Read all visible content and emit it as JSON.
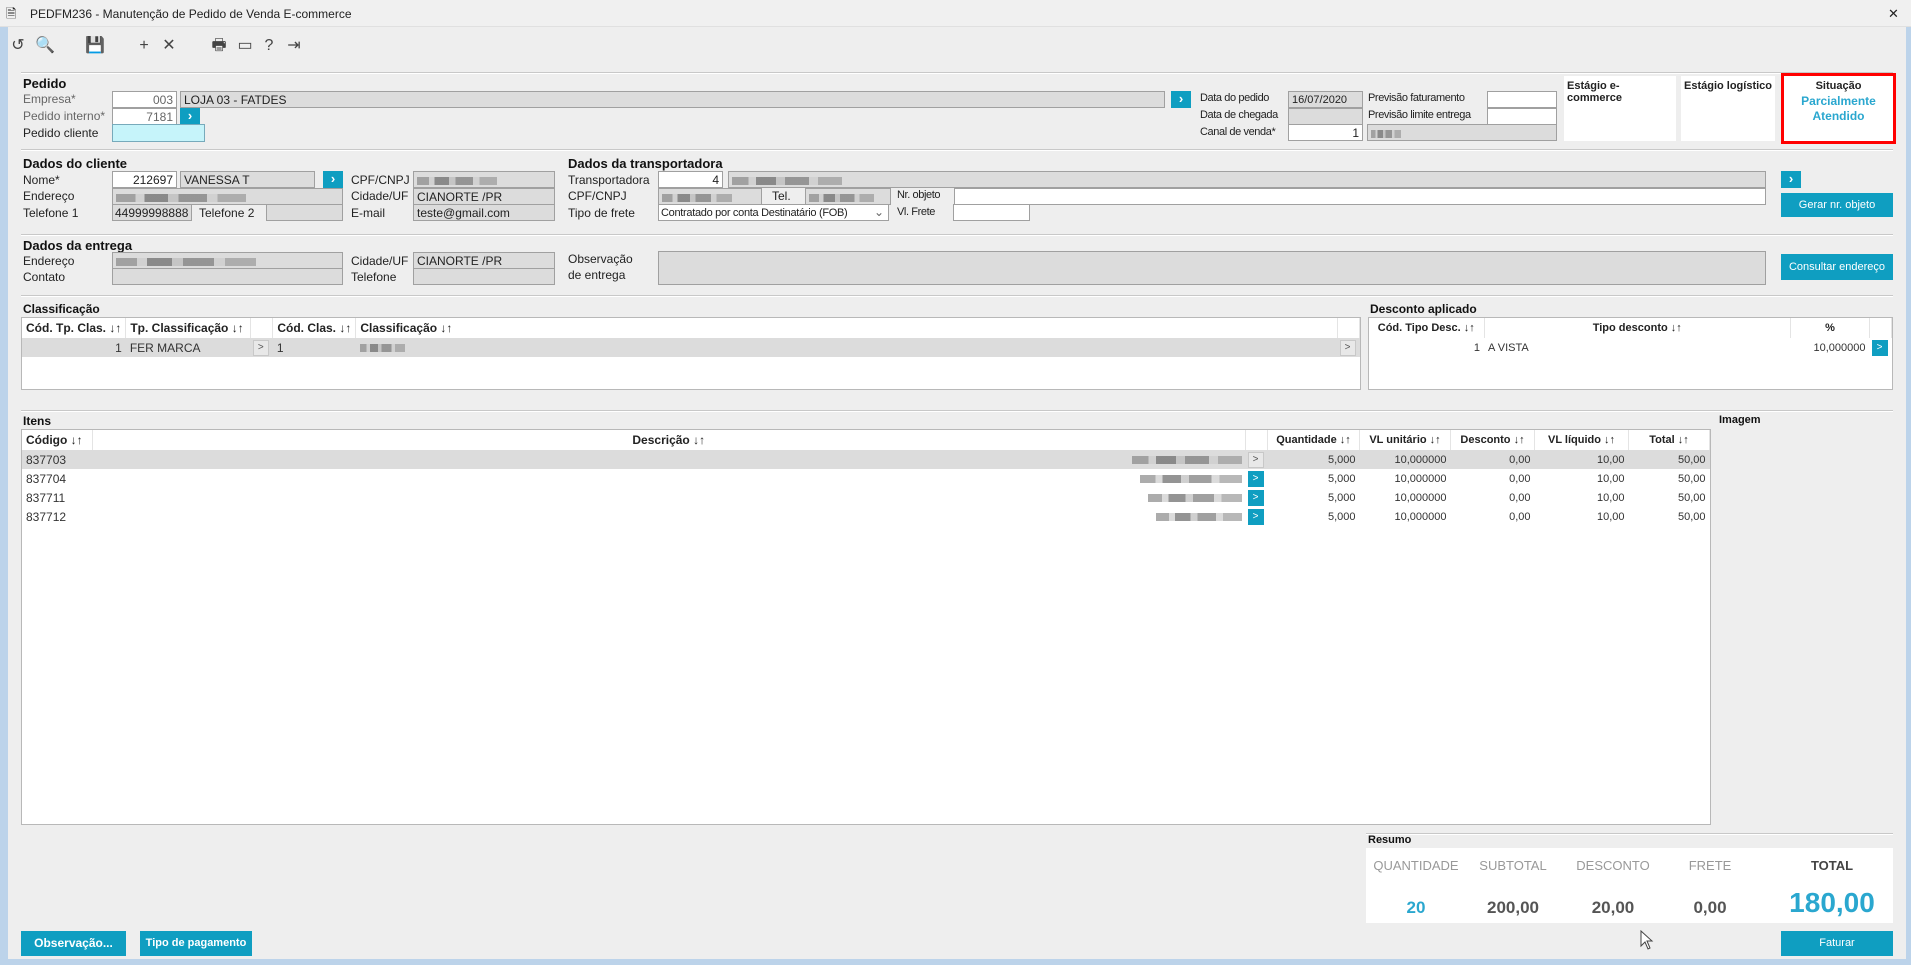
{
  "window": {
    "title": "PEDFM236 - Manutenção de Pedido de Venda E-commerce",
    "close": "✕",
    "icon": "document-icon"
  },
  "toolbar": [
    {
      "icon": "undo-icon",
      "glyph": "↺"
    },
    {
      "icon": "search-icon",
      "glyph": "🔍"
    },
    {
      "icon": "save-icon",
      "glyph": "💾"
    },
    {
      "icon": "add-icon",
      "glyph": "+"
    },
    {
      "icon": "delete-icon",
      "glyph": "✕"
    },
    {
      "icon": "print-icon",
      "glyph": "🖶"
    },
    {
      "icon": "calendar-icon",
      "glyph": "▭"
    },
    {
      "icon": "help-icon",
      "glyph": "?"
    },
    {
      "icon": "exit-icon",
      "glyph": "⇥"
    }
  ],
  "pedido": {
    "title": "Pedido",
    "empresa_label": "Empresa*",
    "empresa_code": "003",
    "empresa_name": "LOJA 03 - FATDES",
    "pedido_interno_label": "Pedido interno*",
    "pedido_interno": "7181",
    "pedido_cliente_label": "Pedido cliente",
    "pedido_cliente": "",
    "data_pedido_label": "Data do pedido",
    "data_pedido": "16/07/2020",
    "data_chegada_label": "Data de chegada",
    "data_chegada": "",
    "canal_label": "Canal de venda*",
    "canal": "1",
    "prev_fat_label": "Previsão faturamento",
    "prev_fat": "",
    "prev_entrega_label": "Previsão limite entrega",
    "prev_entrega": ""
  },
  "estagios": {
    "ecommerce_label": "Estágio e-commerce",
    "logistico_label": "Estágio logístico",
    "situacao_label": "Situação",
    "situacao_value": "Parcialmente Atendido",
    "highlight_color": "#ff0000",
    "accent": "#0f9ec1"
  },
  "cliente": {
    "title": "Dados do cliente",
    "nome_label": "Nome*",
    "nome_code": "212697",
    "nome": "VANESSA T",
    "cpf_label": "CPF/CNPJ",
    "endereco_label": "Endereço",
    "cidade_label": "Cidade/UF",
    "cidade": "CIANORTE /PR",
    "tel1_label": "Telefone 1",
    "tel1": "44999998888",
    "tel2_label": "Telefone 2",
    "tel2": "",
    "email_label": "E-mail",
    "email": "teste@gmail.com"
  },
  "transportadora": {
    "title": "Dados da transportadora",
    "transp_label": "Transportadora",
    "transp_code": "4",
    "cpf_label": "CPF/CNPJ",
    "tel_label": "Tel.",
    "nr_objeto_label": "Nr. objeto",
    "nr_objeto": "",
    "frete_tipo_label": "Tipo de frete",
    "frete_tipo": "Contratado por conta Destinatário (FOB)",
    "vl_frete_label": "Vl. Frete",
    "vl_frete": "",
    "gerar_button": "Gerar nr. objeto"
  },
  "entrega": {
    "title": "Dados da entrega",
    "endereco_label": "Endereço",
    "contato_label": "Contato",
    "contato": "",
    "cidade_label": "Cidade/UF",
    "cidade": "CIANORTE /PR",
    "telefone_label": "Telefone",
    "telefone": "",
    "obs_label1": "Observação",
    "obs_label2": "de entrega",
    "obs": "",
    "consultar_button": "Consultar endereço"
  },
  "classificacao": {
    "title": "Classificação",
    "columns": [
      "Cód. Tp. Clas. ↓↑",
      "Tp. Classificação ↓↑",
      "",
      "Cód. Clas. ↓↑",
      "Classificação ↓↑",
      ""
    ],
    "rows": [
      {
        "cod_tp": "1",
        "tp": "FER MARCA",
        "cod": "1"
      }
    ]
  },
  "desconto": {
    "title": "Desconto aplicado",
    "columns": [
      "Cód. Tipo Desc. ↓↑",
      "Tipo desconto ↓↑",
      "%"
    ],
    "rows": [
      {
        "cod": "1",
        "tipo": "A VISTA",
        "pct": "10,000000"
      }
    ]
  },
  "itens": {
    "title": "Itens",
    "imagem_label": "Imagem",
    "columns": [
      "Código ↓↑",
      "Descrição ↓↑",
      "",
      "Quantidade ↓↑",
      "VL unitário ↓↑",
      "Desconto ↓↑",
      "VL líquido ↓↑",
      "Total ↓↑"
    ],
    "rows": [
      {
        "codigo": "837703",
        "qtd": "5,000",
        "unit": "10,000000",
        "desc": "0,00",
        "liq": "10,00",
        "total": "50,00"
      },
      {
        "codigo": "837704",
        "qtd": "5,000",
        "unit": "10,000000",
        "desc": "0,00",
        "liq": "10,00",
        "total": "50,00"
      },
      {
        "codigo": "837711",
        "qtd": "5,000",
        "unit": "10,000000",
        "desc": "0,00",
        "liq": "10,00",
        "total": "50,00"
      },
      {
        "codigo": "837712",
        "qtd": "5,000",
        "unit": "10,000000",
        "desc": "0,00",
        "liq": "10,00",
        "total": "50,00"
      }
    ]
  },
  "resumo": {
    "title": "Resumo",
    "quantidade_label": "QUANTIDADE",
    "quantidade": "20",
    "subtotal_label": "SUBTOTAL",
    "subtotal": "200,00",
    "desconto_label": "DESCONTO",
    "desconto": "20,00",
    "frete_label": "FRETE",
    "frete": "0,00",
    "total_label": "TOTAL",
    "total": "180,00"
  },
  "buttons": {
    "observacao": "Observação...",
    "tipo_pagamento": "Tipo de pagamento",
    "faturar": "Faturar"
  }
}
